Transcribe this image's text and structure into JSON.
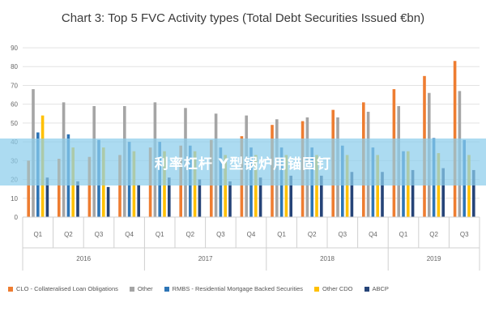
{
  "page_title": "Chart 3: Top 5 FVC Activity types (Total Debt Securities Issued €bn)",
  "banner": {
    "text": "利率杠杆 Y型锅炉用锚固钉"
  },
  "chart_data": {
    "type": "bar",
    "title": "Chart 3: Top 5 FVC Activity types (Total Debt Securities Issued €bn)",
    "xlabel": "",
    "ylabel": "",
    "ylim": [
      0,
      90
    ],
    "yticks": [
      0,
      10,
      20,
      30,
      40,
      50,
      60,
      70,
      80,
      90
    ],
    "grid": true,
    "legend_position": "bottom",
    "categories": [
      "Q1",
      "Q2",
      "Q3",
      "Q4",
      "Q1",
      "Q2",
      "Q3",
      "Q4",
      "Q1",
      "Q2",
      "Q3",
      "Q4",
      "Q1",
      "Q2",
      "Q3"
    ],
    "groups": [
      {
        "label": "2016",
        "count": 4
      },
      {
        "label": "2017",
        "count": 4
      },
      {
        "label": "2018",
        "count": 4
      },
      {
        "label": "2019",
        "count": 3
      }
    ],
    "series": [
      {
        "name": "CLO - Collateralised Loan Obligations",
        "color": "#ee7d31",
        "values": [
          30,
          31,
          32,
          33,
          37,
          38,
          41,
          43,
          49,
          51,
          57,
          61,
          68,
          75,
          83
        ]
      },
      {
        "name": "Other",
        "color": "#a5a5a5",
        "values": [
          68,
          61,
          59,
          59,
          61,
          58,
          55,
          54,
          52,
          53,
          53,
          56,
          59,
          66,
          67
        ]
      },
      {
        "name": "RMBS - Residential Mortgage Backed Securities",
        "color": "#2e75b6",
        "values": [
          45,
          44,
          41,
          40,
          40,
          38,
          37,
          37,
          37,
          37,
          38,
          37,
          35,
          42,
          41
        ]
      },
      {
        "name": "Other CDO",
        "color": "#ffc000",
        "values": [
          54,
          37,
          37,
          35,
          35,
          35,
          33,
          33,
          33,
          33,
          33,
          33,
          35,
          34,
          33
        ]
      },
      {
        "name": "ABCP",
        "color": "#264478",
        "values": [
          21,
          19,
          16,
          17,
          21,
          20,
          19,
          21,
          22,
          22,
          24,
          24,
          25,
          26,
          25
        ]
      }
    ]
  }
}
